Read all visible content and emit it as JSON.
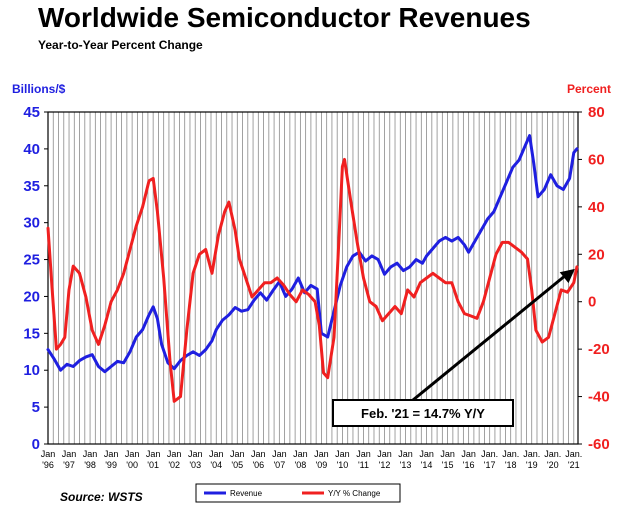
{
  "title": "Worldwide Semiconductor Revenues",
  "subtitle": "Year-to-Year Percent Change",
  "source": "Source: WSTS",
  "chart_data": {
    "type": "line",
    "ylabel": "Billions/$",
    "y2label": "Percent",
    "ylim": [
      0,
      45
    ],
    "y2lim": [
      -60,
      80
    ],
    "yticks": [
      0,
      5,
      10,
      15,
      20,
      25,
      30,
      35,
      40,
      45
    ],
    "y2ticks": [
      -60,
      -40,
      -20,
      0,
      20,
      40,
      60,
      80
    ],
    "x_tick_labels": [
      {
        "top": "Jan",
        "bottom": "'96"
      },
      {
        "top": "Jan",
        "bottom": "'97"
      },
      {
        "top": "Jan",
        "bottom": "'98"
      },
      {
        "top": "Jan",
        "bottom": "'99"
      },
      {
        "top": "Jan",
        "bottom": "'00"
      },
      {
        "top": "Jan",
        "bottom": "'01"
      },
      {
        "top": "Jan",
        "bottom": "'02"
      },
      {
        "top": "Jan",
        "bottom": "'03"
      },
      {
        "top": "Jan",
        "bottom": "'04"
      },
      {
        "top": "Jan",
        "bottom": "'05"
      },
      {
        "top": "Jan",
        "bottom": "'06"
      },
      {
        "top": "Jan",
        "bottom": "'07"
      },
      {
        "top": "Jan",
        "bottom": "'08"
      },
      {
        "top": "Jan",
        "bottom": "'09"
      },
      {
        "top": "Jan",
        "bottom": "'10"
      },
      {
        "top": "Jan",
        "bottom": "'11"
      },
      {
        "top": "Jan",
        "bottom": "'12"
      },
      {
        "top": "Jan",
        "bottom": "'13"
      },
      {
        "top": "Jan",
        "bottom": "'14"
      },
      {
        "top": "Jan",
        "bottom": "'15"
      },
      {
        "top": "Jan",
        "bottom": "'16"
      },
      {
        "top": "Jan.",
        "bottom": "'17"
      },
      {
        "top": "Jan.",
        "bottom": "'18"
      },
      {
        "top": "Jan.",
        "bottom": "'19"
      },
      {
        "top": "Jan.",
        "bottom": "'20"
      },
      {
        "top": "Jan.",
        "bottom": "'21"
      }
    ],
    "grid": "vertical",
    "annotation": "Feb. '21 = 14.7% Y/Y",
    "legend_position": "bottom",
    "series": [
      {
        "name": "Revenue",
        "axis": "left",
        "color": "#1f1fe0",
        "points": [
          [
            1996.0,
            12.8
          ],
          [
            1996.3,
            11.5
          ],
          [
            1996.6,
            10.0
          ],
          [
            1996.9,
            10.8
          ],
          [
            1997.2,
            10.5
          ],
          [
            1997.5,
            11.3
          ],
          [
            1997.8,
            11.8
          ],
          [
            1998.1,
            12.1
          ],
          [
            1998.4,
            10.5
          ],
          [
            1998.7,
            9.8
          ],
          [
            1999.0,
            10.5
          ],
          [
            1999.3,
            11.2
          ],
          [
            1999.6,
            11.0
          ],
          [
            1999.9,
            12.5
          ],
          [
            2000.2,
            14.5
          ],
          [
            2000.5,
            15.5
          ],
          [
            2000.8,
            17.5
          ],
          [
            2001.0,
            18.6
          ],
          [
            2001.2,
            17.0
          ],
          [
            2001.4,
            13.5
          ],
          [
            2001.7,
            11.0
          ],
          [
            2002.0,
            10.2
          ],
          [
            2002.3,
            11.3
          ],
          [
            2002.6,
            12.0
          ],
          [
            2002.9,
            12.5
          ],
          [
            2003.2,
            12.0
          ],
          [
            2003.5,
            12.8
          ],
          [
            2003.8,
            14.0
          ],
          [
            2004.0,
            15.5
          ],
          [
            2004.3,
            16.8
          ],
          [
            2004.6,
            17.5
          ],
          [
            2004.9,
            18.5
          ],
          [
            2005.2,
            18.0
          ],
          [
            2005.5,
            18.2
          ],
          [
            2005.8,
            19.5
          ],
          [
            2006.1,
            20.5
          ],
          [
            2006.4,
            19.5
          ],
          [
            2006.7,
            20.8
          ],
          [
            2007.0,
            22.0
          ],
          [
            2007.3,
            20.0
          ],
          [
            2007.6,
            21.0
          ],
          [
            2007.9,
            22.5
          ],
          [
            2008.2,
            20.5
          ],
          [
            2008.5,
            21.5
          ],
          [
            2008.8,
            21.0
          ],
          [
            2009.0,
            15.0
          ],
          [
            2009.3,
            14.5
          ],
          [
            2009.6,
            18.0
          ],
          [
            2009.9,
            21.5
          ],
          [
            2010.2,
            24.0
          ],
          [
            2010.5,
            25.5
          ],
          [
            2010.8,
            26.0
          ],
          [
            2011.1,
            24.8
          ],
          [
            2011.4,
            25.5
          ],
          [
            2011.7,
            25.0
          ],
          [
            2012.0,
            23.0
          ],
          [
            2012.3,
            24.0
          ],
          [
            2012.6,
            24.5
          ],
          [
            2012.9,
            23.5
          ],
          [
            2013.2,
            24.0
          ],
          [
            2013.5,
            25.0
          ],
          [
            2013.8,
            24.5
          ],
          [
            2014.0,
            25.5
          ],
          [
            2014.3,
            26.5
          ],
          [
            2014.6,
            27.5
          ],
          [
            2014.9,
            28.0
          ],
          [
            2015.2,
            27.5
          ],
          [
            2015.5,
            28.0
          ],
          [
            2015.8,
            27.0
          ],
          [
            2016.0,
            26.0
          ],
          [
            2016.3,
            27.5
          ],
          [
            2016.6,
            29.0
          ],
          [
            2016.9,
            30.5
          ],
          [
            2017.2,
            31.5
          ],
          [
            2017.5,
            33.5
          ],
          [
            2017.8,
            35.5
          ],
          [
            2018.1,
            37.5
          ],
          [
            2018.4,
            38.5
          ],
          [
            2018.7,
            40.5
          ],
          [
            2018.9,
            41.8
          ],
          [
            2019.1,
            38.0
          ],
          [
            2019.3,
            33.5
          ],
          [
            2019.6,
            34.5
          ],
          [
            2019.9,
            36.5
          ],
          [
            2020.2,
            35.0
          ],
          [
            2020.5,
            34.5
          ],
          [
            2020.8,
            36.0
          ],
          [
            2021.0,
            39.5
          ],
          [
            2021.15,
            40.0
          ]
        ]
      },
      {
        "name": "Y/Y % Change",
        "axis": "right",
        "color": "#f02020",
        "points": [
          [
            1996.0,
            31
          ],
          [
            1996.2,
            5
          ],
          [
            1996.4,
            -20
          ],
          [
            1996.6,
            -18
          ],
          [
            1996.8,
            -15
          ],
          [
            1997.0,
            5
          ],
          [
            1997.2,
            15
          ],
          [
            1997.5,
            12
          ],
          [
            1997.8,
            2
          ],
          [
            1998.1,
            -12
          ],
          [
            1998.4,
            -18
          ],
          [
            1998.7,
            -10
          ],
          [
            1999.0,
            0
          ],
          [
            1999.3,
            5
          ],
          [
            1999.6,
            12
          ],
          [
            1999.9,
            22
          ],
          [
            2000.2,
            32
          ],
          [
            2000.5,
            40
          ],
          [
            2000.8,
            51
          ],
          [
            2001.0,
            52
          ],
          [
            2001.2,
            38
          ],
          [
            2001.5,
            10
          ],
          [
            2001.8,
            -25
          ],
          [
            2002.0,
            -42
          ],
          [
            2002.3,
            -40
          ],
          [
            2002.6,
            -12
          ],
          [
            2002.9,
            12
          ],
          [
            2003.2,
            20
          ],
          [
            2003.5,
            22
          ],
          [
            2003.8,
            12
          ],
          [
            2004.1,
            28
          ],
          [
            2004.4,
            38
          ],
          [
            2004.6,
            42
          ],
          [
            2004.9,
            30
          ],
          [
            2005.1,
            18
          ],
          [
            2005.4,
            10
          ],
          [
            2005.7,
            2
          ],
          [
            2006.0,
            5
          ],
          [
            2006.3,
            8
          ],
          [
            2006.6,
            8
          ],
          [
            2006.9,
            10
          ],
          [
            2007.2,
            7
          ],
          [
            2007.5,
            3
          ],
          [
            2007.8,
            0
          ],
          [
            2008.1,
            5
          ],
          [
            2008.4,
            3
          ],
          [
            2008.7,
            0
          ],
          [
            2008.9,
            -10
          ],
          [
            2009.1,
            -30
          ],
          [
            2009.3,
            -32
          ],
          [
            2009.6,
            -15
          ],
          [
            2009.8,
            20
          ],
          [
            2010.0,
            57
          ],
          [
            2010.1,
            60
          ],
          [
            2010.4,
            42
          ],
          [
            2010.7,
            25
          ],
          [
            2011.0,
            10
          ],
          [
            2011.3,
            0
          ],
          [
            2011.6,
            -2
          ],
          [
            2011.9,
            -8
          ],
          [
            2012.2,
            -5
          ],
          [
            2012.5,
            -2
          ],
          [
            2012.8,
            -5
          ],
          [
            2013.1,
            5
          ],
          [
            2013.4,
            2
          ],
          [
            2013.7,
            8
          ],
          [
            2014.0,
            10
          ],
          [
            2014.3,
            12
          ],
          [
            2014.6,
            10
          ],
          [
            2014.9,
            8
          ],
          [
            2015.2,
            8
          ],
          [
            2015.5,
            0
          ],
          [
            2015.8,
            -5
          ],
          [
            2016.1,
            -6
          ],
          [
            2016.4,
            -7
          ],
          [
            2016.7,
            0
          ],
          [
            2017.0,
            10
          ],
          [
            2017.3,
            20
          ],
          [
            2017.6,
            25
          ],
          [
            2017.9,
            25
          ],
          [
            2018.2,
            23
          ],
          [
            2018.5,
            21
          ],
          [
            2018.8,
            18
          ],
          [
            2019.0,
            5
          ],
          [
            2019.2,
            -12
          ],
          [
            2019.5,
            -17
          ],
          [
            2019.8,
            -15
          ],
          [
            2020.1,
            -5
          ],
          [
            2020.4,
            5
          ],
          [
            2020.7,
            4
          ],
          [
            2021.0,
            8
          ],
          [
            2021.15,
            14.7
          ]
        ]
      }
    ]
  }
}
